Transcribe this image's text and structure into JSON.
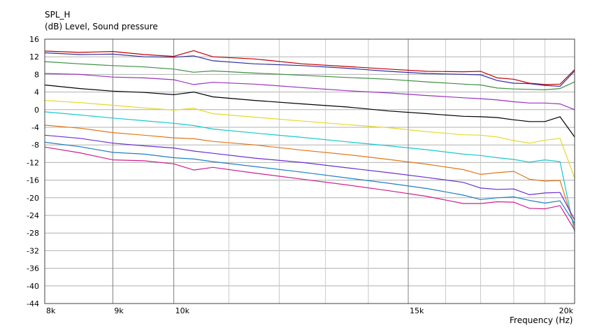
{
  "chart_data": {
    "type": "line",
    "title": "SPL_H",
    "ylabel": "(dB)  Level, Sound pressure",
    "xlabel": "Frequency  (Hz)",
    "xscale": "log",
    "xlim": [
      8000,
      20000
    ],
    "ylim": [
      -44,
      16
    ],
    "grid": true,
    "yticks": [
      16,
      12,
      8,
      4,
      0,
      -4,
      -8,
      -12,
      -16,
      -20,
      -24,
      -28,
      -32,
      -36,
      -40,
      -44
    ],
    "yticklabels": [
      "16",
      "12",
      "8",
      "4",
      "0",
      "-4",
      "-8",
      "-12",
      "-16",
      "-20",
      "-24",
      "-28",
      "-32",
      "-36",
      "-40",
      "-44"
    ],
    "xticks": [
      8000,
      9000,
      10000,
      15000,
      20000
    ],
    "xticklabels": [
      "8k",
      "9k",
      "10k",
      "15k",
      "20k"
    ],
    "series": [
      {
        "color": "#c00000",
        "x": [
          8000,
          8500,
          9000,
          9500,
          10000,
          10350,
          10700,
          11500,
          12500,
          13500,
          14500,
          15500,
          16500,
          17000,
          17500,
          18000,
          18500,
          19000,
          19500,
          20000
        ],
        "values": [
          13.3,
          13.0,
          13.2,
          12.5,
          12.1,
          13.4,
          12.0,
          11.5,
          10.4,
          9.8,
          9.2,
          8.7,
          8.6,
          8.7,
          7.2,
          6.9,
          6.0,
          5.7,
          5.8,
          9.1
        ]
      },
      {
        "color": "#2f2fa0",
        "x": [
          8000,
          8500,
          9000,
          9500,
          10000,
          10350,
          10700,
          11500,
          12500,
          13500,
          14500,
          15500,
          16500,
          17000,
          17500,
          18000,
          18500,
          19000,
          19500,
          20000
        ],
        "values": [
          12.9,
          12.5,
          12.6,
          12.0,
          11.9,
          12.2,
          11.1,
          10.4,
          10.0,
          9.4,
          8.7,
          8.2,
          8.0,
          7.9,
          6.6,
          6.0,
          5.9,
          5.5,
          5.3,
          8.8
        ]
      },
      {
        "color": "#3f9040",
        "x": [
          8000,
          8500,
          9000,
          9500,
          10000,
          10350,
          10700,
          11500,
          12500,
          13500,
          14500,
          15500,
          16500,
          17000,
          17500,
          18000,
          18500,
          19000,
          19500,
          20000
        ],
        "values": [
          10.9,
          10.4,
          10.0,
          9.7,
          9.2,
          8.5,
          8.8,
          8.3,
          7.8,
          7.3,
          6.9,
          6.3,
          5.8,
          5.6,
          4.9,
          4.7,
          4.6,
          4.5,
          4.8,
          6.3
        ]
      },
      {
        "color": "#9933bb",
        "x": [
          8000,
          8500,
          9000,
          9500,
          10000,
          10350,
          10700,
          11500,
          12500,
          13500,
          14500,
          15500,
          16500,
          17000,
          17500,
          18000,
          18500,
          19000,
          19500,
          20000
        ],
        "values": [
          8.2,
          8.0,
          7.4,
          7.2,
          6.8,
          5.7,
          6.2,
          5.8,
          5.0,
          4.3,
          3.8,
          3.2,
          2.7,
          2.5,
          2.2,
          1.8,
          1.5,
          1.5,
          1.3,
          0.0
        ]
      },
      {
        "color": "#000000",
        "x": [
          8000,
          8500,
          9000,
          9500,
          10000,
          10350,
          10700,
          11500,
          12500,
          13500,
          14500,
          15500,
          16500,
          17000,
          17500,
          18000,
          18500,
          19000,
          19500,
          20000
        ],
        "values": [
          5.6,
          4.8,
          4.2,
          3.9,
          3.4,
          4.0,
          2.9,
          2.1,
          1.3,
          0.6,
          -0.3,
          -0.9,
          -1.5,
          -1.6,
          -1.8,
          -2.3,
          -2.7,
          -2.7,
          -1.6,
          -6.2
        ]
      },
      {
        "color": "#e6d828",
        "x": [
          8000,
          8500,
          9000,
          9500,
          10000,
          10350,
          10700,
          11500,
          12500,
          13500,
          14500,
          15500,
          16500,
          17000,
          17500,
          18000,
          18500,
          19000,
          19500,
          20000
        ],
        "values": [
          2.1,
          1.6,
          1.0,
          0.4,
          -0.1,
          0.3,
          -0.9,
          -1.7,
          -2.6,
          -3.4,
          -4.1,
          -5.0,
          -5.7,
          -5.8,
          -6.2,
          -7.0,
          -7.6,
          -6.9,
          -6.5,
          -15.5
        ]
      },
      {
        "color": "#18c8d0",
        "x": [
          8000,
          8500,
          9000,
          9500,
          10000,
          10350,
          10700,
          11500,
          12500,
          13500,
          14500,
          15500,
          16500,
          17000,
          17500,
          18000,
          18500,
          19000,
          19500,
          20000
        ],
        "values": [
          -0.5,
          -1.2,
          -1.9,
          -2.5,
          -3.1,
          -3.6,
          -4.4,
          -5.3,
          -6.3,
          -7.3,
          -8.2,
          -9.1,
          -10.1,
          -10.4,
          -10.9,
          -11.3,
          -11.9,
          -11.4,
          -11.8,
          -27.8
        ]
      },
      {
        "color": "#e07818",
        "x": [
          8000,
          8500,
          9000,
          9500,
          10000,
          10350,
          10700,
          11500,
          12500,
          13500,
          14500,
          15500,
          16500,
          17000,
          17500,
          18000,
          18500,
          19000,
          19500,
          20000
        ],
        "values": [
          -3.5,
          -4.2,
          -5.2,
          -5.8,
          -6.4,
          -6.6,
          -7.2,
          -8.0,
          -9.2,
          -10.2,
          -11.3,
          -12.4,
          -13.6,
          -14.7,
          -14.3,
          -14.0,
          -15.8,
          -16.2,
          -16.1,
          -26.5
        ]
      },
      {
        "color": "#6a30d0",
        "x": [
          8000,
          8500,
          9000,
          9500,
          10000,
          10350,
          10700,
          11500,
          12500,
          13500,
          14500,
          15500,
          16500,
          17000,
          17500,
          18000,
          18500,
          19000,
          19500,
          20000
        ],
        "values": [
          -5.8,
          -6.5,
          -7.6,
          -8.2,
          -8.7,
          -9.4,
          -9.9,
          -11.0,
          -12.0,
          -13.2,
          -14.3,
          -15.4,
          -16.5,
          -17.8,
          -18.1,
          -18.0,
          -19.3,
          -18.9,
          -18.8,
          -25.0
        ]
      },
      {
        "color": "#1e80c0",
        "x": [
          8000,
          8500,
          9000,
          9500,
          10000,
          10350,
          10700,
          11500,
          12500,
          13500,
          14500,
          15500,
          16500,
          17000,
          17500,
          18000,
          18500,
          19000,
          19500,
          20000
        ],
        "values": [
          -7.4,
          -8.4,
          -9.7,
          -10.1,
          -10.9,
          -11.2,
          -11.8,
          -12.9,
          -14.2,
          -15.5,
          -16.7,
          -17.9,
          -19.4,
          -20.4,
          -20.0,
          -19.8,
          -20.6,
          -21.2,
          -20.7,
          -25.8
        ]
      },
      {
        "color": "#cc2090",
        "x": [
          8000,
          8500,
          9000,
          9500,
          10000,
          10350,
          10700,
          11500,
          12500,
          13500,
          14500,
          15500,
          16500,
          17000,
          17500,
          18000,
          18500,
          19000,
          19500,
          20000
        ],
        "values": [
          -8.5,
          -9.8,
          -11.4,
          -11.6,
          -12.3,
          -13.7,
          -13.1,
          -14.4,
          -15.8,
          -17.1,
          -18.4,
          -19.7,
          -21.3,
          -21.3,
          -20.9,
          -21.0,
          -22.4,
          -22.5,
          -21.8,
          -27.3
        ]
      }
    ]
  }
}
